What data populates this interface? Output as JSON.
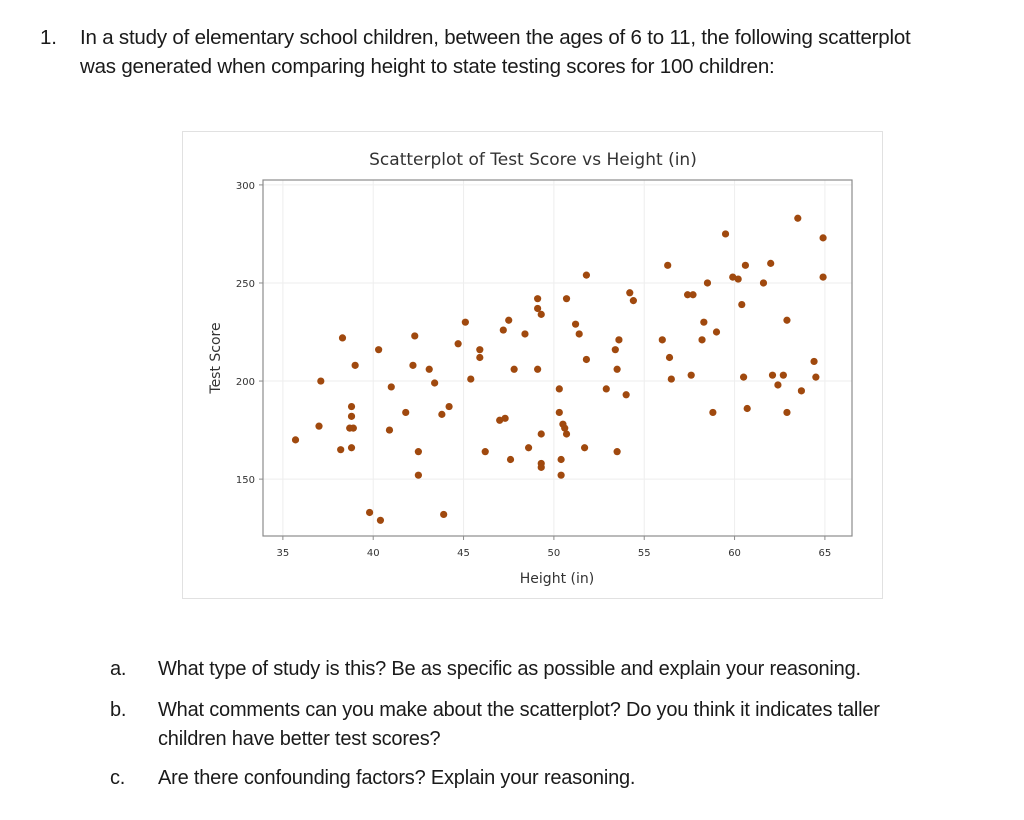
{
  "question": {
    "number": "1.",
    "line1": "In a study of elementary school children, between the ages of 6 to 11, the following scatterplot",
    "line2": "was generated when comparing height to state testing scores for 100 children:"
  },
  "subquestions": [
    {
      "label": "a.",
      "lines": [
        "What type of study is this? Be as specific as possible and explain your reasoning."
      ]
    },
    {
      "label": "b.",
      "lines": [
        "What comments can you make about the scatterplot? Do you think it indicates taller",
        "children have better test scores?"
      ]
    },
    {
      "label": "c.",
      "lines": [
        "Are there confounding factors? Explain your reasoning."
      ]
    }
  ],
  "colors": {
    "point": "#A0490E",
    "frame": "#8c8c8c",
    "grid": "#eeeeee",
    "text": "#333333"
  },
  "chart_data": {
    "type": "scatter",
    "title": "Scatterplot of Test Score vs Height (in)",
    "xlabel": "Height (in)",
    "ylabel": "Test Score",
    "xlim": [
      33.9,
      66.5
    ],
    "ylim": [
      121,
      302.5
    ],
    "xticks": [
      35,
      40,
      45,
      50,
      55,
      60,
      65
    ],
    "yticks": [
      150,
      200,
      250,
      300
    ],
    "grid": true,
    "legend": null,
    "points": [
      [
        35.7,
        170
      ],
      [
        37.0,
        177
      ],
      [
        37.1,
        200
      ],
      [
        38.3,
        222
      ],
      [
        38.2,
        165
      ],
      [
        38.8,
        166
      ],
      [
        38.8,
        187
      ],
      [
        38.8,
        182
      ],
      [
        38.7,
        176
      ],
      [
        39.0,
        208
      ],
      [
        39.8,
        133
      ],
      [
        40.4,
        129
      ],
      [
        40.3,
        216
      ],
      [
        40.9,
        175
      ],
      [
        41.0,
        197
      ],
      [
        41.8,
        184
      ],
      [
        42.2,
        208
      ],
      [
        42.3,
        223
      ],
      [
        42.5,
        164
      ],
      [
        42.5,
        152
      ],
      [
        43.1,
        206
      ],
      [
        43.4,
        199
      ],
      [
        43.8,
        183
      ],
      [
        43.9,
        132
      ],
      [
        44.2,
        187
      ],
      [
        44.7,
        219
      ],
      [
        45.1,
        230
      ],
      [
        45.4,
        201
      ],
      [
        45.9,
        216
      ],
      [
        45.9,
        212
      ],
      [
        46.2,
        164
      ],
      [
        47.0,
        180
      ],
      [
        47.3,
        181
      ],
      [
        47.2,
        226
      ],
      [
        47.5,
        231
      ],
      [
        47.6,
        160
      ],
      [
        47.8,
        206
      ],
      [
        48.4,
        224
      ],
      [
        48.6,
        166
      ],
      [
        49.1,
        206
      ],
      [
        49.1,
        242
      ],
      [
        49.1,
        237
      ],
      [
        49.3,
        234
      ],
      [
        49.3,
        173
      ],
      [
        49.3,
        158
      ],
      [
        49.3,
        156
      ],
      [
        50.3,
        196
      ],
      [
        50.3,
        184
      ],
      [
        50.4,
        160
      ],
      [
        50.4,
        152
      ],
      [
        50.5,
        178
      ],
      [
        50.7,
        242
      ],
      [
        50.7,
        173
      ],
      [
        51.2,
        229
      ],
      [
        51.4,
        224
      ],
      [
        51.7,
        166
      ],
      [
        51.8,
        254
      ],
      [
        51.8,
        211
      ],
      [
        52.9,
        196
      ],
      [
        53.4,
        216
      ],
      [
        53.5,
        206
      ],
      [
        53.6,
        221
      ],
      [
        53.5,
        164
      ],
      [
        54.0,
        193
      ],
      [
        54.2,
        245
      ],
      [
        54.4,
        241
      ],
      [
        56.0,
        221
      ],
      [
        56.3,
        259
      ],
      [
        56.4,
        212
      ],
      [
        56.5,
        201
      ],
      [
        57.4,
        244
      ],
      [
        57.7,
        244
      ],
      [
        57.6,
        203
      ],
      [
        58.2,
        221
      ],
      [
        58.3,
        230
      ],
      [
        58.5,
        250
      ],
      [
        58.8,
        184
      ],
      [
        59.0,
        225
      ],
      [
        59.5,
        275
      ],
      [
        59.9,
        253
      ],
      [
        60.2,
        252
      ],
      [
        60.4,
        239
      ],
      [
        60.6,
        259
      ],
      [
        60.5,
        202
      ],
      [
        60.7,
        186
      ],
      [
        61.6,
        250
      ],
      [
        62.0,
        260
      ],
      [
        62.1,
        203
      ],
      [
        62.7,
        203
      ],
      [
        62.4,
        198
      ],
      [
        62.9,
        231
      ],
      [
        62.9,
        184
      ],
      [
        63.5,
        283
      ],
      [
        63.7,
        195
      ],
      [
        64.4,
        210
      ],
      [
        64.5,
        202
      ],
      [
        64.9,
        273
      ],
      [
        64.9,
        253
      ],
      [
        50.6,
        176
      ],
      [
        38.9,
        176
      ]
    ]
  }
}
